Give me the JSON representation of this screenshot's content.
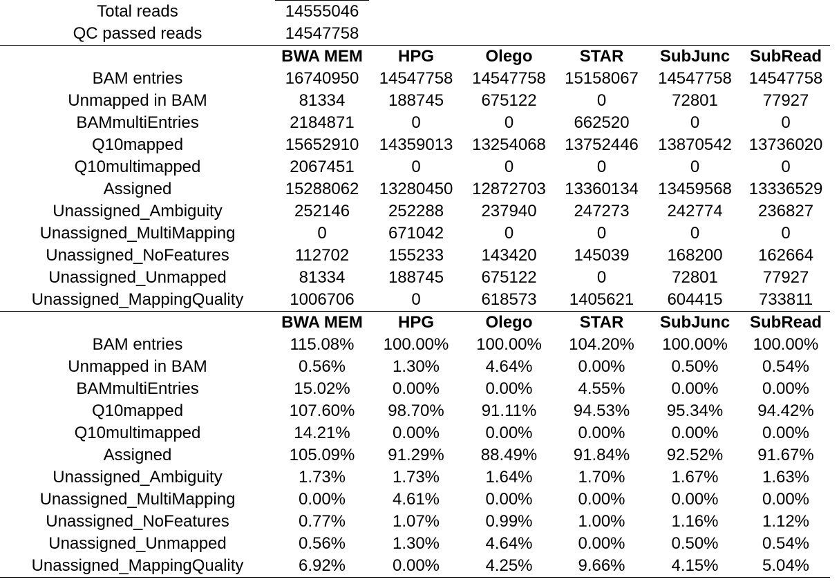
{
  "summary": [
    {
      "label": "Total reads",
      "value": "14555046"
    },
    {
      "label": "QC passed reads",
      "value": "14547758"
    }
  ],
  "columns": [
    "BWA MEM",
    "HPG",
    "Olego",
    "STAR",
    "SubJunc",
    "SubRead"
  ],
  "counts": [
    {
      "label": "BAM entries",
      "values": [
        "16740950",
        "14547758",
        "14547758",
        "15158067",
        "14547758",
        "14547758"
      ]
    },
    {
      "label": "Unmapped in BAM",
      "values": [
        "81334",
        "188745",
        "675122",
        "0",
        "72801",
        "77927"
      ]
    },
    {
      "label": "BAMmultiEntries",
      "values": [
        "2184871",
        "0",
        "0",
        "662520",
        "0",
        "0"
      ]
    },
    {
      "label": "Q10mapped",
      "values": [
        "15652910",
        "14359013",
        "13254068",
        "13752446",
        "13870542",
        "13736020"
      ]
    },
    {
      "label": "Q10multimapped",
      "values": [
        "2067451",
        "0",
        "0",
        "0",
        "0",
        "0"
      ]
    },
    {
      "label": "Assigned",
      "values": [
        "15288062",
        "13280450",
        "12872703",
        "13360134",
        "13459568",
        "13336529"
      ]
    },
    {
      "label": "Unassigned_Ambiguity",
      "values": [
        "252146",
        "252288",
        "237940",
        "247273",
        "242774",
        "236827"
      ]
    },
    {
      "label": "Unassigned_MultiMapping",
      "values": [
        "0",
        "671042",
        "0",
        "0",
        "0",
        "0"
      ]
    },
    {
      "label": "Unassigned_NoFeatures",
      "values": [
        "112702",
        "155233",
        "143420",
        "145039",
        "168200",
        "162664"
      ]
    },
    {
      "label": "Unassigned_Unmapped",
      "values": [
        "81334",
        "188745",
        "675122",
        "0",
        "72801",
        "77927"
      ]
    },
    {
      "label": "Unassigned_MappingQuality",
      "values": [
        "1006706",
        "0",
        "618573",
        "1405621",
        "604415",
        "733811"
      ]
    }
  ],
  "percents": [
    {
      "label": "BAM entries",
      "values": [
        "115.08%",
        "100.00%",
        "100.00%",
        "104.20%",
        "100.00%",
        "100.00%"
      ]
    },
    {
      "label": "Unmapped in BAM",
      "values": [
        "0.56%",
        "1.30%",
        "4.64%",
        "0.00%",
        "0.50%",
        "0.54%"
      ]
    },
    {
      "label": "BAMmultiEntries",
      "values": [
        "15.02%",
        "0.00%",
        "0.00%",
        "4.55%",
        "0.00%",
        "0.00%"
      ]
    },
    {
      "label": "Q10mapped",
      "values": [
        "107.60%",
        "98.70%",
        "91.11%",
        "94.53%",
        "95.34%",
        "94.42%"
      ]
    },
    {
      "label": "Q10multimapped",
      "values": [
        "14.21%",
        "0.00%",
        "0.00%",
        "0.00%",
        "0.00%",
        "0.00%"
      ]
    },
    {
      "label": "Assigned",
      "values": [
        "105.09%",
        "91.29%",
        "88.49%",
        "91.84%",
        "92.52%",
        "91.67%"
      ]
    },
    {
      "label": "Unassigned_Ambiguity",
      "values": [
        "1.73%",
        "1.73%",
        "1.64%",
        "1.70%",
        "1.67%",
        "1.63%"
      ]
    },
    {
      "label": "Unassigned_MultiMapping",
      "values": [
        "0.00%",
        "4.61%",
        "0.00%",
        "0.00%",
        "0.00%",
        "0.00%"
      ]
    },
    {
      "label": "Unassigned_NoFeatures",
      "values": [
        "0.77%",
        "1.07%",
        "0.99%",
        "1.00%",
        "1.16%",
        "1.12%"
      ]
    },
    {
      "label": "Unassigned_Unmapped",
      "values": [
        "0.56%",
        "1.30%",
        "4.64%",
        "0.00%",
        "0.50%",
        "0.54%"
      ]
    },
    {
      "label": "Unassigned_MappingQuality",
      "values": [
        "6.92%",
        "0.00%",
        "4.25%",
        "9.66%",
        "4.15%",
        "5.04%"
      ]
    }
  ]
}
